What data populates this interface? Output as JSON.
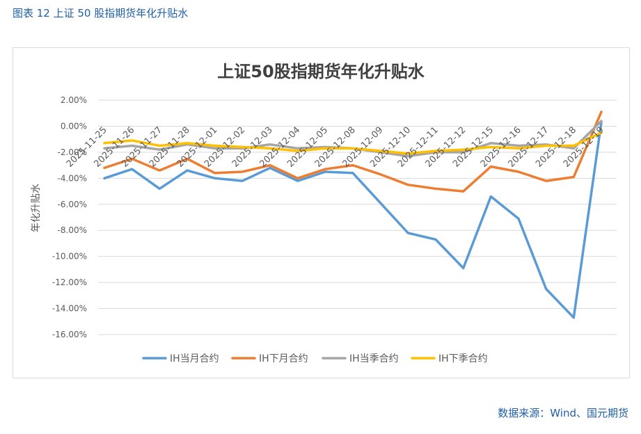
{
  "caption": "图表 12 上证 50 股指期货年化升贴水",
  "source": "数据来源：Wind、国元期货",
  "colors": {
    "IH当月合约": "#5b9bd5",
    "IH下月合约": "#ed7d31",
    "IH当季合约": "#a5a5a5",
    "IH下季合约": "#ffc000",
    "caption": "#1f5fa8",
    "grid": "#d9d9d9"
  },
  "chart_data": {
    "type": "line",
    "title": "上证50股指期货年化升贴水",
    "xlabel": "",
    "ylabel": "年化升贴水",
    "ylim": [
      -16,
      2
    ],
    "yticks": [
      2,
      0,
      -2,
      -4,
      -6,
      -8,
      -10,
      -12,
      -14,
      -16
    ],
    "ytick_labels": [
      "2.00%",
      "0.00%",
      "-2.00%",
      "-4.00%",
      "-6.00%",
      "-8.00%",
      "-10.00%",
      "-12.00%",
      "-14.00%",
      "-16.00%"
    ],
    "grid": true,
    "legend": "bottom",
    "categories": [
      "2025-11-25",
      "2025-11-26",
      "2025-11-27",
      "2025-11-28",
      "2025-12-01",
      "2025-12-02",
      "2025-12-03",
      "2025-12-04",
      "2025-12-05",
      "2025-12-08",
      "2025-12-09",
      "2025-12-10",
      "2025-12-11",
      "2025-12-12",
      "2025-12-15",
      "2025-12-16",
      "2025-12-17",
      "2025-12-18",
      "2025-12-19"
    ],
    "series": [
      {
        "name": "IH当月合约",
        "values": [
          -4.0,
          -3.3,
          -4.8,
          -3.4,
          -4.0,
          -4.2,
          -3.2,
          -4.2,
          -3.5,
          -3.6,
          -5.9,
          -8.2,
          -8.7,
          -10.9,
          -5.4,
          -7.1,
          -12.5,
          -14.7,
          0.3
        ]
      },
      {
        "name": "IH下月合约",
        "values": [
          -3.2,
          -2.5,
          -3.4,
          -2.5,
          -3.6,
          -3.5,
          -3.0,
          -4.0,
          -3.3,
          -3.0,
          -3.7,
          -4.5,
          -4.8,
          -5.0,
          -3.1,
          -3.5,
          -4.2,
          -3.9,
          1.1
        ]
      },
      {
        "name": "IH当季合约",
        "values": [
          -1.7,
          -1.5,
          -1.8,
          -1.4,
          -1.7,
          -1.7,
          -1.4,
          -1.7,
          -1.6,
          -1.7,
          -2.0,
          -2.3,
          -2.0,
          -2.0,
          -1.3,
          -1.5,
          -1.4,
          -1.7,
          0.4
        ]
      },
      {
        "name": "IH下季合约",
        "values": [
          -1.3,
          -1.1,
          -1.5,
          -1.3,
          -1.5,
          -1.6,
          -1.7,
          -1.9,
          -1.7,
          -1.7,
          -1.9,
          -2.1,
          -1.9,
          -1.8,
          -1.6,
          -1.7,
          -1.5,
          -1.5,
          -0.5
        ]
      }
    ]
  }
}
